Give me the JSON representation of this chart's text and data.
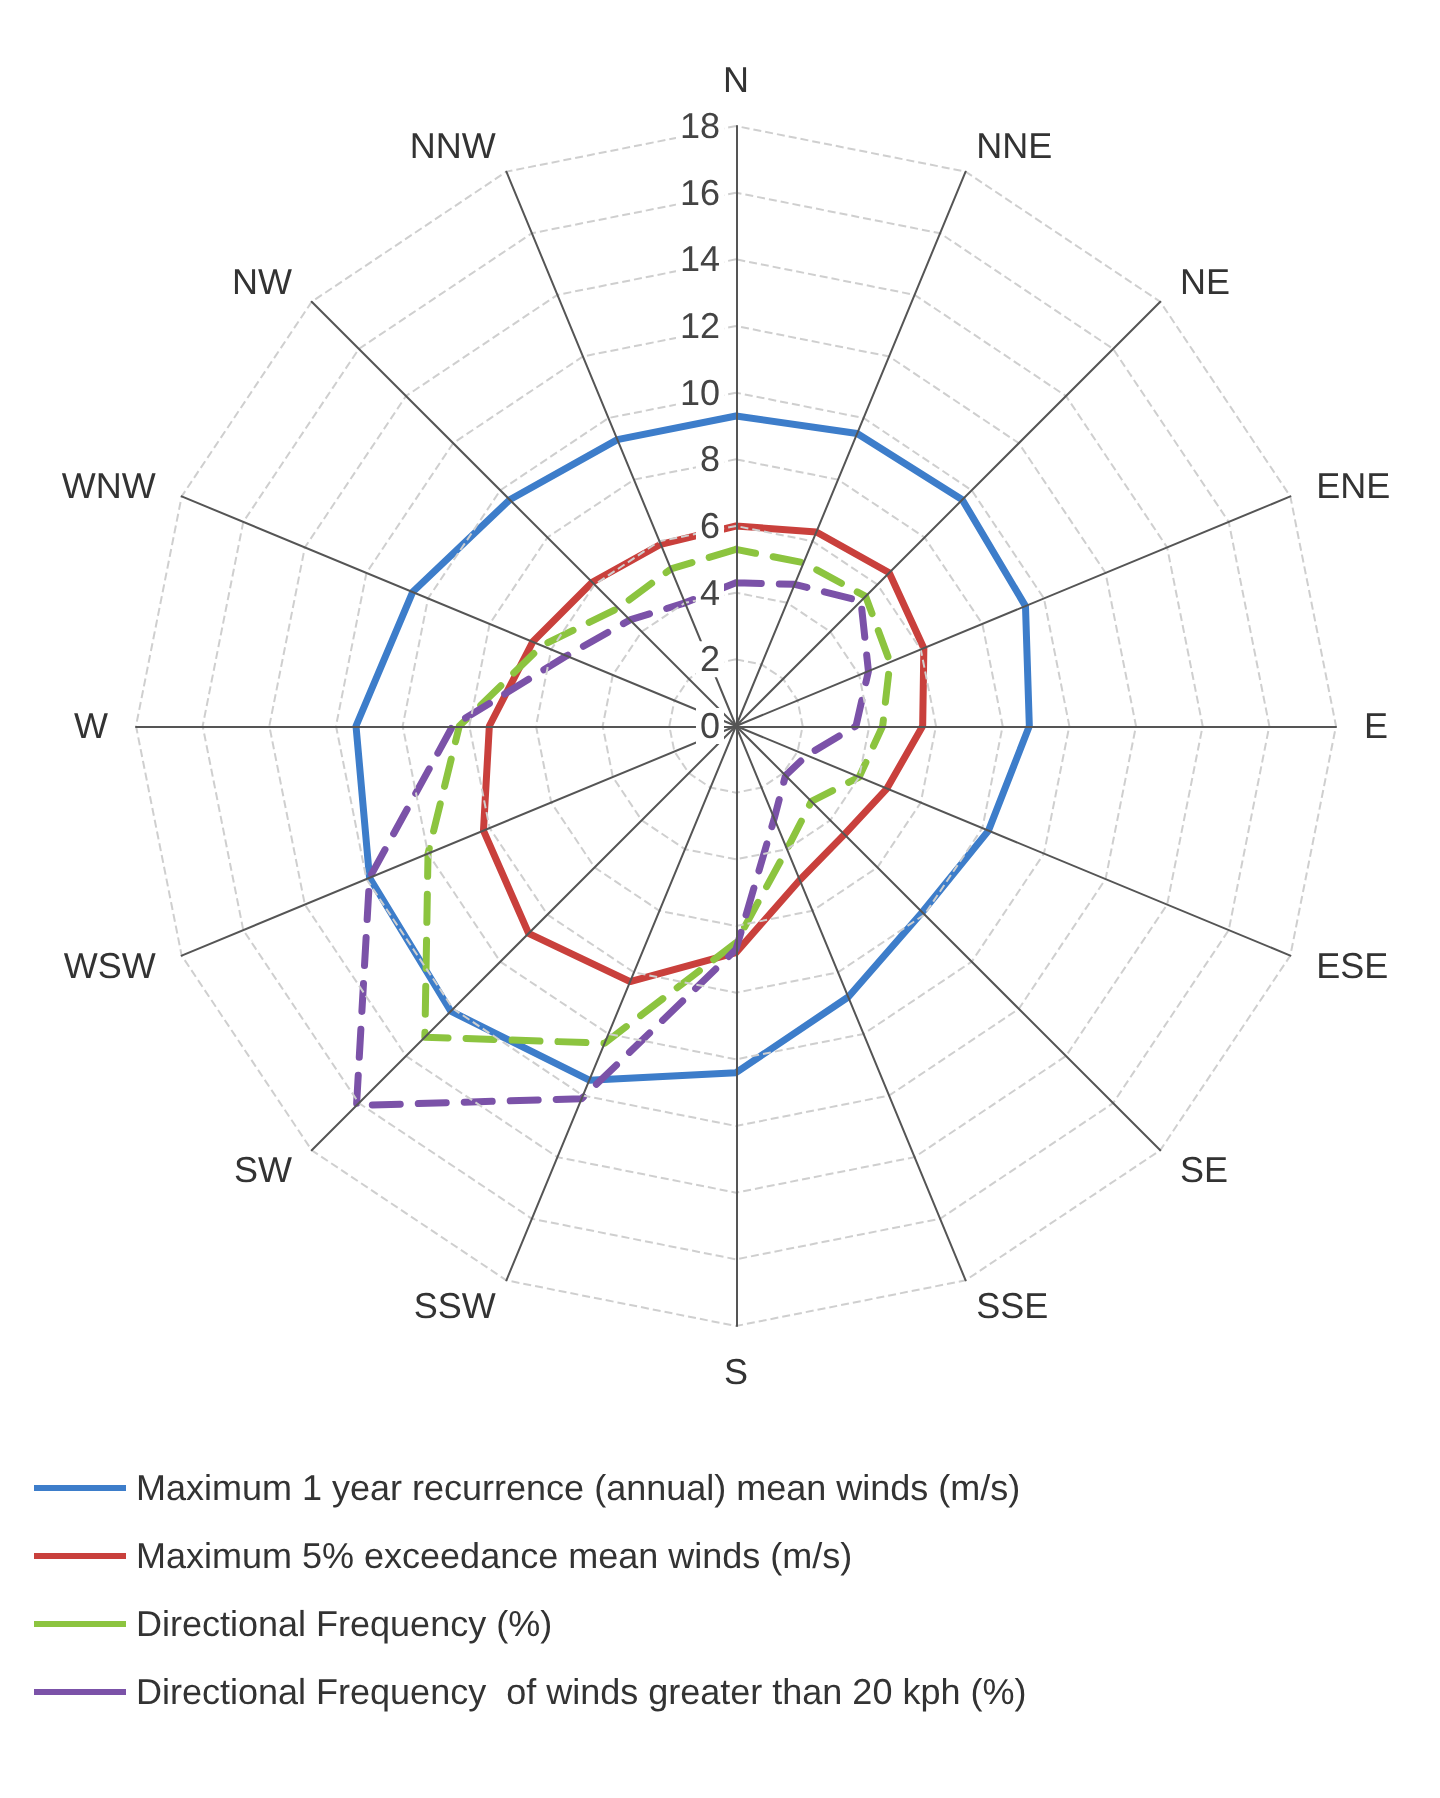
{
  "chart_data": {
    "type": "radar",
    "categories": [
      "N",
      "NNE",
      "NE",
      "ENE",
      "E",
      "ESE",
      "SE",
      "SSE",
      "S",
      "SSW",
      "SW",
      "WSW",
      "W",
      "WNW",
      "NW",
      "NNW"
    ],
    "series": [
      {
        "name": "Maximum 1 year recurrence (annual) mean winds (m/s)",
        "color": "#3d7dca",
        "line_style": "solid",
        "values": [
          9.3,
          9.5,
          9.6,
          9.4,
          8.8,
          8.2,
          7.9,
          8.8,
          10.4,
          11.5,
          12.1,
          11.9,
          11.4,
          10.5,
          9.6,
          9.3
        ]
      },
      {
        "name": "Maximum 5% exceedance mean winds (m/s)",
        "color": "#c9403c",
        "line_style": "solid",
        "values": [
          6.0,
          6.3,
          6.5,
          6.1,
          5.6,
          4.9,
          4.6,
          5.0,
          6.8,
          8.3,
          8.8,
          8.2,
          7.4,
          6.6,
          6.1,
          5.9
        ]
      },
      {
        "name": "Directional Frequency (%)",
        "color": "#8cc43f",
        "line_style": "dashed",
        "values": [
          5.3,
          5.3,
          5.5,
          5.0,
          4.4,
          4.0,
          3.2,
          4.0,
          6.5,
          10.3,
          13.2,
          10.0,
          8.3,
          6.3,
          5.0,
          5.1
        ]
      },
      {
        "name": "Directional Frequency  of winds greater than 20 kph (%)",
        "color": "#7b52a8",
        "line_style": "dashed",
        "values": [
          4.3,
          4.6,
          5.3,
          4.3,
          3.6,
          2.3,
          2.1,
          3.0,
          6.7,
          12.1,
          16.1,
          11.9,
          8.5,
          5.5,
          4.5,
          4.0
        ]
      }
    ],
    "ylim": [
      0,
      18
    ],
    "yticks": [
      0,
      2,
      4,
      6,
      8,
      10,
      12,
      14,
      16,
      18
    ],
    "grid": true,
    "legend": "bottom",
    "marker": "none"
  }
}
